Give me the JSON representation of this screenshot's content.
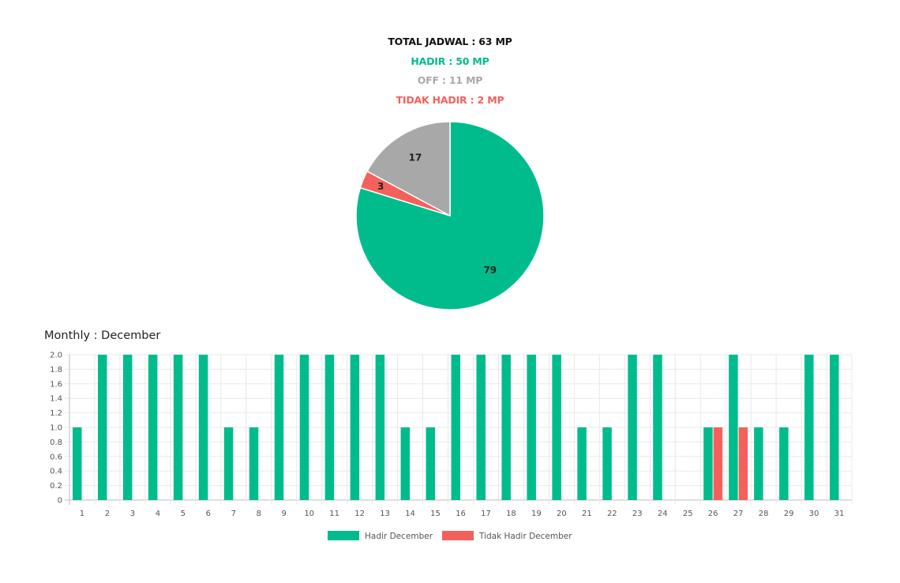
{
  "summary": {
    "total": "TOTAL JADWAL : 63 MP",
    "hadir": "HADIR : 50 MP",
    "off": "OFF : 11 MP",
    "tidak_hadir": "TIDAK HADIR : 2 MP"
  },
  "monthly_title": "Monthly : December",
  "colors": {
    "hadir": "#00bc8c",
    "tidak_hadir": "#f4615d",
    "off": "#a8a8a8"
  },
  "chart_data": [
    {
      "type": "pie",
      "slices": [
        {
          "label": "Hadir",
          "value": 79,
          "color": "#00bc8c"
        },
        {
          "label": "Tidak Hadir",
          "value": 3,
          "color": "#f4615d"
        },
        {
          "label": "Off",
          "value": 17,
          "color": "#a8a8a8"
        }
      ]
    },
    {
      "type": "bar",
      "title": "Monthly : December",
      "categories": [
        "1",
        "2",
        "3",
        "4",
        "5",
        "6",
        "7",
        "8",
        "9",
        "10",
        "11",
        "12",
        "13",
        "14",
        "15",
        "16",
        "17",
        "18",
        "19",
        "20",
        "21",
        "22",
        "23",
        "24",
        "25",
        "26",
        "27",
        "28",
        "29",
        "30",
        "31"
      ],
      "series": [
        {
          "name": "Hadir December",
          "color": "#00bc8c",
          "values": [
            1,
            2,
            2,
            2,
            2,
            2,
            1,
            1,
            2,
            2,
            2,
            2,
            2,
            1,
            1,
            2,
            2,
            2,
            2,
            2,
            1,
            1,
            2,
            2,
            0,
            1,
            2,
            1,
            1,
            2,
            2
          ]
        },
        {
          "name": "Tidak Hadir December",
          "color": "#f4615d",
          "values": [
            0,
            0,
            0,
            0,
            0,
            0,
            0,
            0,
            0,
            0,
            0,
            0,
            0,
            0,
            0,
            0,
            0,
            0,
            0,
            0,
            0,
            0,
            0,
            0,
            0,
            1,
            1,
            0,
            0,
            0,
            0
          ]
        }
      ],
      "ylim": [
        0,
        2
      ],
      "yticks": [
        "0",
        "0.2",
        "0.4",
        "0.6",
        "0.8",
        "1.0",
        "1.2",
        "1.4",
        "1.6",
        "1.8",
        "2.0"
      ],
      "grid": true,
      "legend_position": "bottom"
    }
  ]
}
